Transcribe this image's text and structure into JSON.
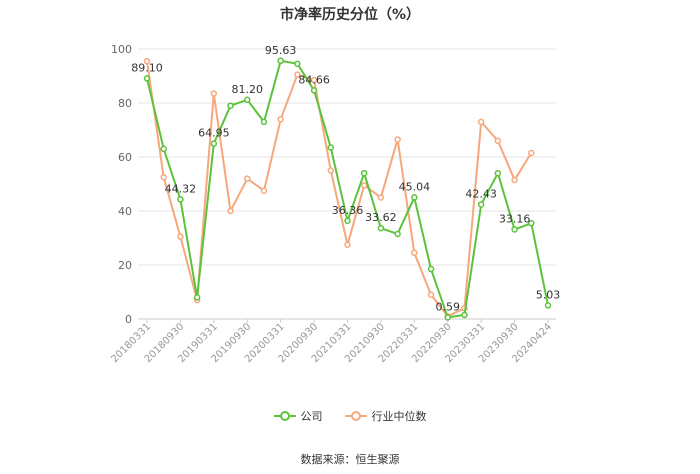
{
  "chart_data": {
    "type": "line",
    "title": "市净率历史分位（%）",
    "ylim": [
      0,
      100
    ],
    "yticks": [
      0,
      20,
      40,
      60,
      80,
      100
    ],
    "grid": true,
    "legend_position": "bottom",
    "x": [
      "20180331",
      "20180630",
      "20180930",
      "20181231",
      "20190331",
      "20190630",
      "20190930",
      "20191231",
      "20200331",
      "20200630",
      "20200930",
      "20201231",
      "20210331",
      "20210630",
      "20210930",
      "20211231",
      "20220331",
      "20220630",
      "20220930",
      "20221231",
      "20230331",
      "20230630",
      "20230930",
      "20231231",
      "20240424"
    ],
    "xtick_labels": [
      "20180331",
      "20180930",
      "20190331",
      "20190930",
      "20200331",
      "20200930",
      "20210331",
      "20210930",
      "20220331",
      "20220930",
      "20230331",
      "20230930",
      "20240424"
    ],
    "series": [
      {
        "name": "公司",
        "color": "#5cc23b",
        "values": [
          89.1,
          63,
          44.32,
          8,
          64.95,
          79,
          81.2,
          73,
          95.63,
          94.5,
          84.66,
          63.5,
          36.36,
          54,
          33.62,
          31.5,
          45.04,
          18.5,
          0.59,
          1.5,
          42.43,
          54,
          33.16,
          35.5,
          5.03
        ],
        "labels": [
          "89.10",
          "",
          "44.32",
          "",
          "64.95",
          "",
          "81.20",
          "",
          "95.63",
          "",
          "84.66",
          "",
          "36.36",
          "",
          "33.62",
          "",
          "45.04",
          "",
          "0.59",
          "",
          "42.43",
          "",
          "33.16",
          "",
          "5.03"
        ]
      },
      {
        "name": "行业中位数",
        "color": "#f7a77b",
        "values": [
          95.5,
          52.5,
          30.5,
          7,
          83.5,
          40,
          52,
          47.5,
          74,
          90.5,
          88.5,
          55,
          27.5,
          49.5,
          45,
          66.5,
          24.5,
          9,
          1,
          4,
          73,
          66,
          51.5,
          61.5,
          null
        ]
      }
    ]
  },
  "source": "数据来源：恒生聚源"
}
